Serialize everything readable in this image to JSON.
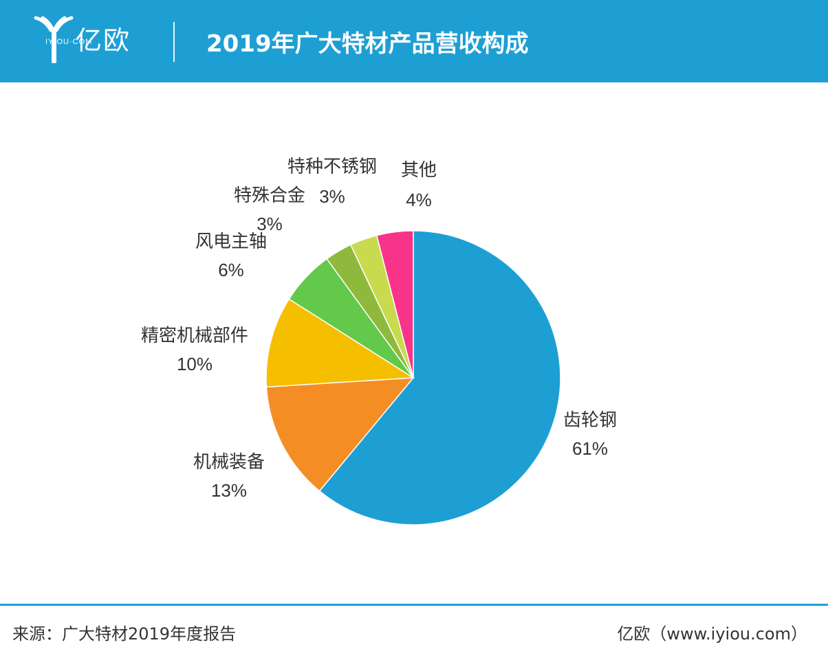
{
  "header": {
    "logo_text": "亿欧",
    "logo_subtext": "IYIOU·COM",
    "title": "2019年广大特材产品营收构成"
  },
  "footer": {
    "source": "来源：广大特材2019年度报告",
    "credit": "亿欧（www.iyiou.com）"
  },
  "colors": {
    "header_bg": "#1e9fd4",
    "label_text": "#333333"
  },
  "chart_data": {
    "type": "pie",
    "title": "2019年广大特材产品营收构成",
    "start": "12 o'clock",
    "direction": "clockwise",
    "slices": [
      {
        "label": "齿轮钢",
        "value": 61,
        "value_label": "61%",
        "color": "#1e9fd4"
      },
      {
        "label": "机械装备",
        "value": 13,
        "value_label": "13%",
        "color": "#f58d25"
      },
      {
        "label": "精密机械部件",
        "value": 10,
        "value_label": "10%",
        "color": "#f5bf00"
      },
      {
        "label": "风电主轴",
        "value": 6,
        "value_label": "6%",
        "color": "#62c94a"
      },
      {
        "label": "特殊合金",
        "value": 3,
        "value_label": "3%",
        "color": "#8fb93c"
      },
      {
        "label": "特种不锈钢",
        "value": 3,
        "value_label": "3%",
        "color": "#c8db4e"
      },
      {
        "label": "其他",
        "value": 4,
        "value_label": "4%",
        "color": "#f7338a"
      }
    ]
  }
}
